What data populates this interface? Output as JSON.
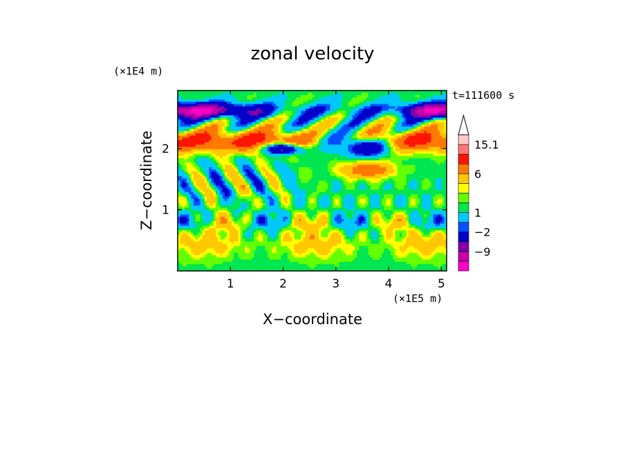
{
  "chart_data": {
    "type": "heatmap",
    "title": "zonal velocity",
    "xlabel": "X−coordinate",
    "ylabel": "Z−coordinate",
    "x_unit": "(×1E5 m)",
    "y_unit": "(×1E4 m)",
    "time_label": "t=111600 s",
    "xlim": [
      0.0,
      5.1
    ],
    "ylim": [
      0.0,
      2.95
    ],
    "x_ticks": [
      1,
      2,
      3,
      4,
      5
    ],
    "y_ticks": [
      1,
      2
    ],
    "colorbar": {
      "levels": [
        -15.1,
        -12,
        -9,
        -6,
        -2,
        -1,
        1,
        2,
        3,
        4,
        6,
        9,
        12,
        15.1
      ],
      "tick_labels": [
        {
          "label": "15.1",
          "value": 15.1
        },
        {
          "label": "6",
          "value": 6
        },
        {
          "label": "1",
          "value": 1
        },
        {
          "label": "−2",
          "value": -2
        },
        {
          "label": "−9",
          "value": -9
        }
      ],
      "colors": [
        "#ff00c8",
        "#c800aa",
        "#8200aa",
        "#0000c8",
        "#0050ff",
        "#00c8ff",
        "#00e650",
        "#64ff00",
        "#ffff00",
        "#ffc800",
        "#ff7800",
        "#ff1400",
        "#ff7878",
        "#ffc8c8"
      ],
      "extend_max": true
    },
    "bands": [
      {
        "z": 2.6,
        "description": "blue jet at left and right edges, broken near x=2.5–3.8"
      },
      {
        "z": 2.1,
        "description": "orange/red band from x=0 to 2.4 and x=3.3 to 5.1"
      },
      {
        "z": 2.0,
        "description": "blue/purple core near x=2.0 and x=3.6"
      },
      {
        "z": 1.5,
        "description": "alternating cyan/green and orange streaks"
      },
      {
        "z": 0.4,
        "description": "yellow/orange lower layer with green patches"
      }
    ]
  }
}
